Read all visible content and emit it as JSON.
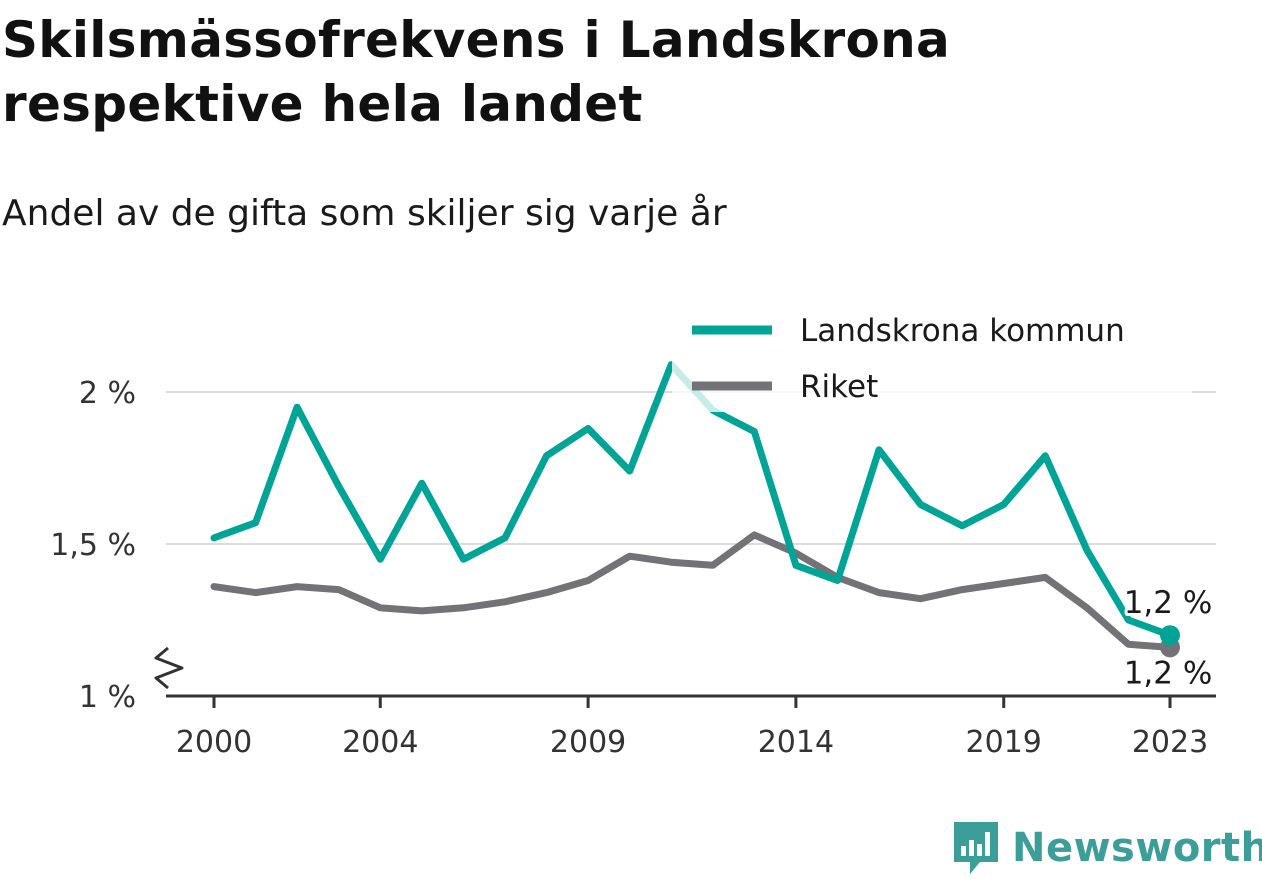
{
  "title": "Skilsmässofrekvens i Landskrona respektive hela landet",
  "subtitle": "Andel av de gifta som skiljer sig varje år",
  "brand": {
    "name": "Newsworthy",
    "icon": "bar-chart-speech-bubble-icon",
    "color": "#3c9e98"
  },
  "chart_data": {
    "type": "line",
    "x": [
      2000,
      2001,
      2002,
      2003,
      2004,
      2005,
      2006,
      2007,
      2008,
      2009,
      2010,
      2011,
      2012,
      2013,
      2014,
      2015,
      2016,
      2017,
      2018,
      2019,
      2020,
      2021,
      2022,
      2023
    ],
    "x_ticks": [
      2000,
      2004,
      2009,
      2014,
      2019,
      2023
    ],
    "x_tick_labels": [
      "2000",
      "2004",
      "2009",
      "2014",
      "2019",
      "2023"
    ],
    "ylim": [
      1.0,
      2.1
    ],
    "y_ticks": [
      1.0,
      1.5,
      2.0
    ],
    "y_tick_labels": [
      "1 %",
      "1,5 %",
      "2 %"
    ],
    "y_axis_break": true,
    "grid": true,
    "legend_position": "top-right",
    "series": [
      {
        "name": "Landskrona kommun",
        "color": "#00a497",
        "values": [
          1.52,
          1.57,
          1.95,
          1.69,
          1.45,
          1.7,
          1.45,
          1.52,
          1.79,
          1.88,
          1.74,
          2.09,
          1.94,
          1.87,
          1.43,
          1.38,
          1.81,
          1.63,
          1.56,
          1.63,
          1.79,
          1.48,
          1.25,
          1.2
        ],
        "end_label": "1,2 %"
      },
      {
        "name": "Riket",
        "color": "#737277",
        "values": [
          1.36,
          1.34,
          1.36,
          1.35,
          1.29,
          1.28,
          1.29,
          1.31,
          1.34,
          1.38,
          1.46,
          1.44,
          1.43,
          1.53,
          1.47,
          1.39,
          1.34,
          1.32,
          1.35,
          1.37,
          1.39,
          1.29,
          1.17,
          1.16
        ],
        "end_label": "1,2 %"
      }
    ]
  }
}
